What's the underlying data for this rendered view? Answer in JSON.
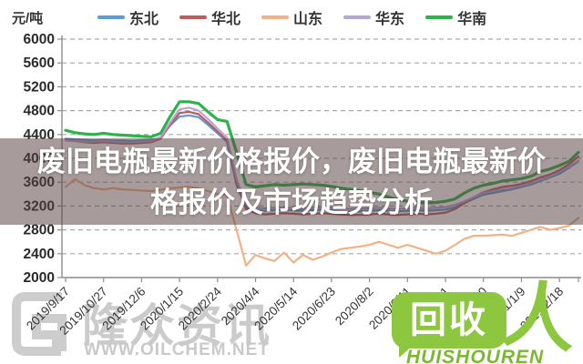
{
  "unit_label": "元/吨",
  "banner": {
    "line1": "废旧电瓶最新价格报价，废旧电瓶最新价",
    "line2": "格报价及市场趋势分析",
    "bg": "rgba(88,66,66,0.53)",
    "text_color": "#ffffff"
  },
  "watermark_left": {
    "brand": "隆众资讯",
    "site": "WWW.OILCHEM.NET",
    "color": "#cbcbcb"
  },
  "watermark_right": {
    "badge": "回收",
    "person": "人",
    "caption": "HUISHOUREN",
    "color": "#8DC63F"
  },
  "chart_data": {
    "type": "line",
    "title": "",
    "unit": "元/吨",
    "ylim": [
      2000,
      6000
    ],
    "ytick_step": 400,
    "grid": true,
    "legend_position": "top",
    "x_tick_labels": [
      "2019/9/17",
      "2019/10/27",
      "2019/12/6",
      "2020/1/15",
      "2020/2/24",
      "2020/4/4",
      "2020/5/14",
      "2020/6/23",
      "2020/8/2",
      "2020/9/11",
      "2020/10/21",
      "2020/11/30",
      "2021/1/9",
      "2021/2/18"
    ],
    "x_tick_indices": [
      0,
      4,
      8,
      12,
      16,
      20,
      24,
      28,
      32,
      36,
      40,
      44,
      48,
      52
    ],
    "n_points": 55,
    "series": [
      {
        "name": "东北",
        "color": "#5B9BD5",
        "width": 2.2,
        "values": [
          4330,
          4320,
          4310,
          4300,
          4310,
          4300,
          4300,
          4290,
          4300,
          4310,
          4350,
          4550,
          4700,
          4720,
          4690,
          4560,
          4420,
          4280,
          3550,
          3180,
          3130,
          3120,
          3130,
          3140,
          3130,
          3120,
          3130,
          3140,
          3130,
          3120,
          3110,
          3110,
          3120,
          3130,
          3120,
          3110,
          3120,
          3130,
          3120,
          3130,
          3140,
          3180,
          3250,
          3320,
          3390,
          3420,
          3450,
          3480,
          3520,
          3560,
          3620,
          3680,
          3740,
          3840,
          3950
        ]
      },
      {
        "name": "华北",
        "color": "#C05B5B",
        "width": 2.2,
        "values": [
          4310,
          4290,
          4270,
          4260,
          4270,
          4260,
          4250,
          4250,
          4260,
          4270,
          4330,
          4560,
          4760,
          4780,
          4740,
          4600,
          4450,
          4300,
          3600,
          3150,
          3080,
          3060,
          3070,
          3080,
          3070,
          3060,
          3070,
          3080,
          3070,
          3060,
          3050,
          3050,
          3060,
          3070,
          3060,
          3050,
          3060,
          3070,
          3060,
          3070,
          3090,
          3150,
          3250,
          3350,
          3430,
          3480,
          3520,
          3540,
          3570,
          3620,
          3680,
          3730,
          3800,
          3900,
          4030
        ]
      },
      {
        "name": "山东",
        "color": "#F4B183",
        "width": 2.2,
        "values": [
          3520,
          3650,
          3550,
          3500,
          3480,
          3500,
          3480,
          3470,
          3460,
          3450,
          3470,
          3500,
          3510,
          3520,
          3500,
          3450,
          3400,
          3380,
          2800,
          2200,
          2380,
          2320,
          2280,
          2420,
          2250,
          2380,
          2300,
          2350,
          2420,
          2480,
          2500,
          2520,
          2550,
          2600,
          2550,
          2500,
          2550,
          2500,
          2450,
          2400,
          2450,
          2550,
          2650,
          2700,
          2700,
          2710,
          2720,
          2700,
          2750,
          2800,
          2850,
          2800,
          2830,
          2870,
          3000
        ]
      },
      {
        "name": "华东",
        "color": "#B4A7D6",
        "width": 2.2,
        "values": [
          4300,
          4290,
          4280,
          4280,
          4290,
          4280,
          4270,
          4270,
          4280,
          4290,
          4360,
          4600,
          4820,
          4850,
          4800,
          4660,
          4500,
          4350,
          3650,
          3220,
          3170,
          3160,
          3170,
          3180,
          3170,
          3160,
          3170,
          3180,
          3170,
          3160,
          3150,
          3150,
          3160,
          3170,
          3160,
          3150,
          3160,
          3170,
          3160,
          3170,
          3180,
          3220,
          3280,
          3350,
          3420,
          3450,
          3480,
          3500,
          3540,
          3580,
          3640,
          3700,
          3770,
          3860,
          3960
        ]
      },
      {
        "name": "华南",
        "color": "#2DB34A",
        "width": 3.2,
        "values": [
          4470,
          4430,
          4410,
          4400,
          4420,
          4400,
          4390,
          4380,
          4370,
          4360,
          4420,
          4700,
          4950,
          4950,
          4920,
          4780,
          4650,
          4620,
          4100,
          3560,
          3520,
          3540,
          3560,
          3550,
          3560,
          3570,
          3560,
          3550,
          3530,
          3500,
          3480,
          3460,
          3430,
          3400,
          3350,
          3310,
          3280,
          3260,
          3250,
          3260,
          3280,
          3320,
          3420,
          3500,
          3550,
          3580,
          3620,
          3640,
          3660,
          3700,
          3780,
          3820,
          3880,
          3950,
          4100
        ]
      }
    ]
  }
}
